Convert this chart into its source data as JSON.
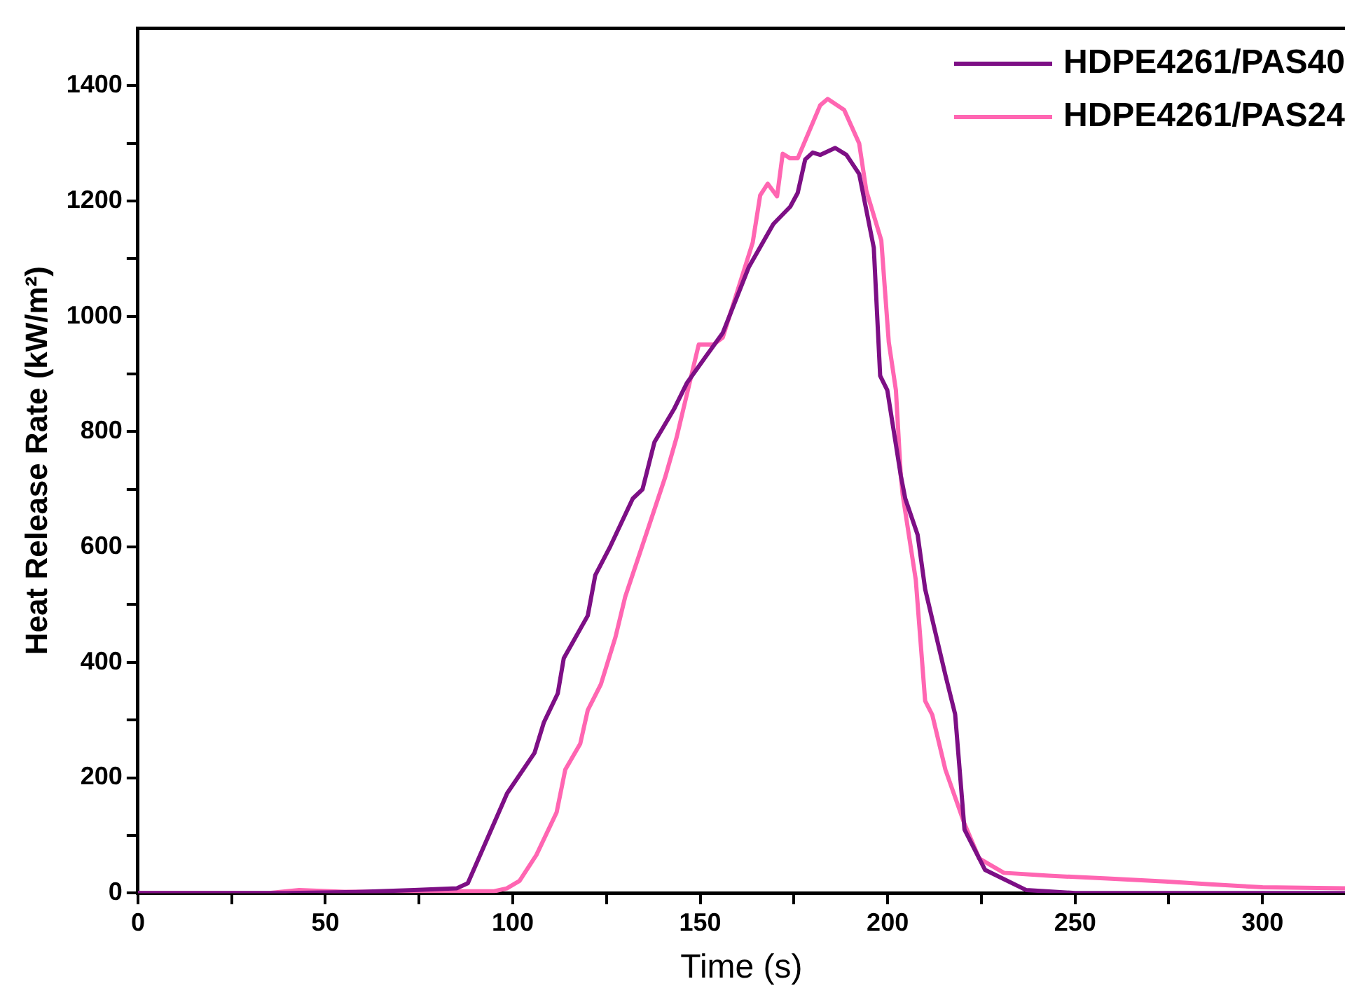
{
  "chart_data": {
    "type": "line",
    "xlabel": "Time (s)",
    "ylabel": "Heat Release Rate (kW/m²)",
    "xlim": [
      0,
      322
    ],
    "ylim": [
      0,
      1500
    ],
    "xticks": [
      0,
      {
        "value": 25,
        "label": null
      },
      50,
      {
        "value": 75,
        "label": null
      },
      100,
      {
        "value": 125,
        "label": null
      },
      150,
      {
        "value": 175,
        "label": null
      },
      200,
      {
        "value": 225,
        "label": null
      },
      250,
      {
        "value": 275,
        "label": null
      },
      300
    ],
    "yticks": [
      0,
      {
        "value": 100,
        "label": null
      },
      200,
      {
        "value": 300,
        "label": null
      },
      400,
      {
        "value": 500,
        "label": null
      },
      600,
      {
        "value": 700,
        "label": null
      },
      800,
      {
        "value": 900,
        "label": null
      },
      1000,
      {
        "value": 1100,
        "label": null
      },
      1200,
      {
        "value": 1300,
        "label": null
      },
      1400
    ],
    "grid": false,
    "legend": "top right",
    "marker": "none",
    "line_style": "solid",
    "series": [
      {
        "name": "HDPE4261/PAS40",
        "color": "#7d0f85",
        "x": [
          0,
          40,
          60,
          73.6,
          85,
          88,
          98.5,
          105.8,
          108.3,
          112,
          113.6,
          120,
          122,
          126,
          132,
          134.6,
          137.8,
          143,
          146.5,
          151,
          156,
          163,
          169.5,
          174,
          176,
          178,
          180,
          182,
          186,
          189,
          192.4,
          196.3,
          198,
          199.9,
          203.5,
          204.7,
          208,
          210,
          215.4,
          218,
          220.5,
          226,
          237,
          250,
          322
        ],
        "values": [
          0,
          0,
          2,
          5,
          8,
          17,
          173,
          243,
          296,
          346,
          407,
          481,
          551,
          601,
          684,
          700,
          782,
          839,
          885,
          926,
          971,
          1086,
          1160,
          1190,
          1214,
          1272,
          1284,
          1280,
          1292,
          1280,
          1247,
          1119,
          897,
          872,
          724,
          684,
          621,
          527,
          378,
          310,
          110,
          40,
          5,
          0,
          0
        ]
      },
      {
        "name": "HDPE4261/PAS24",
        "color": "#ff66b2",
        "x": [
          0,
          35,
          43,
          55,
          80,
          95,
          98.4,
          101.8,
          106.3,
          111.7,
          114,
          118,
          120,
          123.5,
          127.4,
          130,
          136.6,
          140.6,
          143.7,
          149.6,
          153.5,
          156,
          164,
          166,
          168,
          170.5,
          172,
          174,
          176,
          182,
          184,
          188.4,
          192.4,
          194.3,
          198.3,
          200.3,
          202.2,
          203.5,
          204,
          207.5,
          210,
          211.9,
          215.4,
          220.5,
          224.4,
          231,
          243,
          258.7,
          274,
          286,
          300,
          322
        ],
        "values": [
          0,
          0,
          5,
          2,
          3,
          3,
          8,
          21,
          66,
          140,
          214,
          259,
          317,
          362,
          444,
          514,
          642,
          720,
          790,
          951,
          951,
          963,
          1128,
          1210,
          1230,
          1208,
          1282,
          1274,
          1274,
          1366,
          1377,
          1358,
          1300,
          1218,
          1132,
          955,
          872,
          724,
          691,
          543,
          333,
          309,
          214,
          120,
          60,
          35,
          30,
          25,
          20,
          15,
          10,
          8
        ]
      }
    ]
  }
}
